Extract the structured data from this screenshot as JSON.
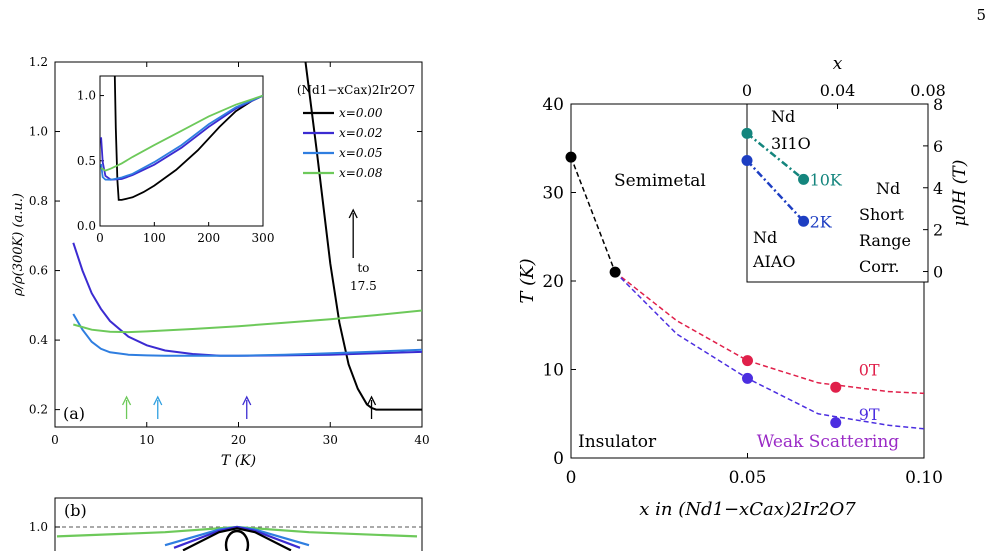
{
  "page_number": "5",
  "chart_data": [
    {
      "id": "panel_a",
      "type": "line",
      "panel_label": "(a)",
      "xlabel": "T (K)",
      "ylabel": "ρ/ρ(300K) (a.u.)",
      "xlim": [
        0,
        40
      ],
      "ylim": [
        0.15,
        1.2
      ],
      "xticks": [
        0,
        10,
        20,
        30,
        40
      ],
      "yticks": [
        0.2,
        0.4,
        0.6,
        0.8,
        1.0,
        1.2
      ],
      "ytick_labels": [
        "0.2",
        "0.4",
        "0.6",
        "0.8",
        "1.0",
        "1.2"
      ],
      "legend_title": "(Nd1−xCax)2Ir2O7",
      "legend_position": "top-right",
      "annotation": {
        "text_lines": [
          "to",
          "17.5"
        ],
        "arrow": "up"
      },
      "series": [
        {
          "name": "x=0.00",
          "color": "#000000",
          "x": [
            27.3,
            28.5,
            30,
            31,
            32,
            33,
            34,
            34.5,
            35,
            36,
            38,
            40
          ],
          "y": [
            1.2,
            0.95,
            0.62,
            0.45,
            0.33,
            0.26,
            0.215,
            0.205,
            0.2,
            0.2,
            0.2,
            0.2
          ]
        },
        {
          "name": "x=0.02",
          "color": "#3b2bd1",
          "x": [
            2,
            3,
            4,
            5,
            6,
            8,
            10,
            12,
            15,
            18,
            21,
            25,
            30,
            35,
            40
          ],
          "y": [
            0.68,
            0.6,
            0.535,
            0.49,
            0.455,
            0.41,
            0.385,
            0.37,
            0.36,
            0.355,
            0.355,
            0.356,
            0.358,
            0.362,
            0.366
          ]
        },
        {
          "name": "x=0.05",
          "color": "#2f7ee0",
          "x": [
            2,
            3,
            4,
            5,
            6,
            8,
            10,
            12,
            15,
            20,
            25,
            30,
            35,
            40
          ],
          "y": [
            0.475,
            0.43,
            0.395,
            0.375,
            0.365,
            0.358,
            0.356,
            0.355,
            0.355,
            0.355,
            0.358,
            0.362,
            0.367,
            0.372
          ]
        },
        {
          "name": "x=0.08",
          "color": "#6dc95a",
          "x": [
            2,
            4,
            6,
            8,
            10,
            15,
            20,
            25,
            30,
            35,
            40
          ],
          "y": [
            0.445,
            0.43,
            0.424,
            0.423,
            0.425,
            0.432,
            0.44,
            0.45,
            0.46,
            0.472,
            0.485
          ]
        }
      ],
      "transition_arrows": [
        {
          "x": 7.8,
          "color": "#6dc95a"
        },
        {
          "x": 11.2,
          "color": "#2f9fe0"
        },
        {
          "x": 20.9,
          "color": "#3b2bd1"
        },
        {
          "x": 34.5,
          "color": "#000000"
        }
      ],
      "inset": {
        "type": "line",
        "xlim": [
          0,
          300
        ],
        "ylim": [
          0,
          1.15
        ],
        "xticks": [
          0,
          100,
          200,
          300
        ],
        "yticks": [
          0.0,
          0.5,
          1.0
        ],
        "ytick_labels": [
          "0.0",
          "0.5",
          "1.0"
        ],
        "series": [
          {
            "name": "x=0.00",
            "color": "#000000",
            "x": [
              27.3,
              29,
              32,
              34.5,
              40,
              60,
              80,
              100,
              140,
              180,
              220,
              250,
              280,
              300
            ],
            "y": [
              1.15,
              0.75,
              0.35,
              0.2,
              0.2,
              0.22,
              0.26,
              0.31,
              0.43,
              0.58,
              0.76,
              0.88,
              0.96,
              1.0
            ]
          },
          {
            "name": "x=0.02",
            "color": "#3b2bd1",
            "x": [
              2,
              5,
              10,
              20,
              40,
              60,
              100,
              150,
              200,
              250,
              300
            ],
            "y": [
              0.68,
              0.49,
              0.385,
              0.355,
              0.36,
              0.39,
              0.47,
              0.6,
              0.76,
              0.9,
              1.0
            ]
          },
          {
            "name": "x=0.05",
            "color": "#2f7ee0",
            "x": [
              2,
              5,
              10,
              20,
              40,
              60,
              100,
              150,
              200,
              250,
              300
            ],
            "y": [
              0.475,
              0.375,
              0.356,
              0.355,
              0.372,
              0.4,
              0.49,
              0.62,
              0.78,
              0.91,
              1.0
            ]
          },
          {
            "name": "x=0.08",
            "color": "#6dc95a",
            "x": [
              2,
              10,
              20,
              40,
              60,
              100,
              150,
              200,
              250,
              300
            ],
            "y": [
              0.445,
              0.425,
              0.44,
              0.48,
              0.53,
              0.62,
              0.73,
              0.84,
              0.93,
              1.0
            ]
          }
        ]
      }
    },
    {
      "id": "panel_b",
      "type": "line",
      "panel_label": "(b)",
      "yticks": [
        1.0
      ],
      "ytick_labels": [
        "1.0"
      ],
      "ylim": [
        0.9,
        1.08
      ],
      "reference_line": {
        "y": 1.0,
        "style": "dashed"
      },
      "series": [
        {
          "name": "x=0.08",
          "color": "#6dc95a",
          "x": [
            -1,
            -0.4,
            0,
            0.4,
            1
          ],
          "y": [
            0.964,
            0.98,
            1.0,
            0.98,
            0.964
          ]
        },
        {
          "name": "x=0.05",
          "color": "#2f7ee0",
          "x": [
            -0.4,
            -0.1,
            0,
            0.1,
            0.4
          ],
          "y": [
            0.93,
            0.99,
            1.0,
            0.99,
            0.93
          ]
        },
        {
          "name": "x=0.02",
          "color": "#3b2bd1",
          "x": [
            -0.35,
            -0.1,
            0,
            0.1,
            0.35
          ],
          "y": [
            0.92,
            0.985,
            1.0,
            0.985,
            0.92
          ]
        },
        {
          "name": "x=0.00",
          "color": "#000000",
          "x": [
            -0.3,
            -0.1,
            0,
            0.1,
            0.3
          ],
          "y": [
            0.91,
            0.98,
            0.995,
            0.98,
            0.91
          ]
        }
      ]
    },
    {
      "id": "phase_diagram",
      "type": "scatter",
      "xlabel": "x in (Nd1−xCax)2Ir2O7",
      "ylabel": "T (K)",
      "xlim": [
        0,
        0.1
      ],
      "ylim": [
        0,
        40
      ],
      "xticks": [
        0,
        0.05,
        0.1
      ],
      "xtick_labels": [
        "0",
        "0.05",
        "0.10"
      ],
      "yticks": [
        0,
        10,
        20,
        30,
        40
      ],
      "ytick_labels": [
        "0",
        "10",
        "20",
        "30",
        "40"
      ],
      "region_labels": {
        "top": "Semimetal",
        "bottom": "Insulator",
        "scattering": "Weak Scattering"
      },
      "series": [
        {
          "name": "",
          "color": "#000000",
          "x": [
            0,
            0.0125
          ],
          "y": [
            34,
            21
          ],
          "line": "dashed"
        },
        {
          "name": "0T",
          "color": "#e0204a",
          "x": [
            0.05,
            0.075
          ],
          "y": [
            11,
            8
          ],
          "fit_x": [
            0.0125,
            0.03,
            0.05,
            0.07,
            0.09,
            0.1
          ],
          "fit_y": [
            21,
            15.5,
            11,
            8.5,
            7.5,
            7.3
          ]
        },
        {
          "name": "9T",
          "color": "#4b2ee0",
          "x": [
            0.05,
            0.075
          ],
          "y": [
            9,
            4
          ],
          "fit_x": [
            0.0125,
            0.03,
            0.05,
            0.07,
            0.09,
            0.1
          ],
          "fit_y": [
            21,
            14,
            9,
            5,
            3.7,
            3.3
          ]
        }
      ],
      "inset": {
        "type": "line",
        "xlabel": "x",
        "ylabel": "μ0H (T)",
        "xlim": [
          0,
          0.08
        ],
        "ylim": [
          -0.5,
          8
        ],
        "xticks": [
          0,
          0.04,
          0.08
        ],
        "xtick_labels": [
          "0",
          "0.04",
          "0.08"
        ],
        "yticks": [
          0,
          2,
          4,
          6,
          8
        ],
        "ytick_labels": [
          "0",
          "2",
          "4",
          "6",
          "8"
        ],
        "region_labels": [
          "Nd",
          "3I1O",
          "Nd",
          "AIAO",
          "Nd",
          "Short",
          "Range",
          "Corr."
        ],
        "series": [
          {
            "name": "10K",
            "color": "#14857d",
            "x": [
              0,
              0.025
            ],
            "y": [
              6.6,
              4.4
            ]
          },
          {
            "name": "2K",
            "color": "#1d3ec2",
            "x": [
              0,
              0.025
            ],
            "y": [
              5.3,
              2.4
            ]
          }
        ]
      }
    }
  ]
}
